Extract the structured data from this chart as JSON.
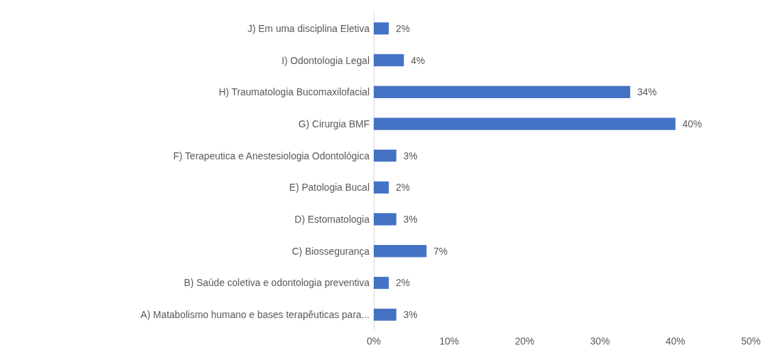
{
  "chart_data": {
    "type": "bar",
    "orientation": "horizontal",
    "categories": [
      "J) Em uma disciplina Eletiva",
      "I) Odontologia Legal",
      "H) Traumatologia Bucomaxilofacial",
      "G) Cirurgia BMF",
      "F) Terapeutica e Anestesiologia Odontológica",
      "E) Patologia Bucal",
      "D) Estomatologia",
      "C) Biossegurança",
      "B) Saúde coletiva e odontologia preventiva",
      "A) Matabolismo humano e bases terapêuticas para..."
    ],
    "values": [
      2,
      4,
      34,
      40,
      3,
      2,
      3,
      7,
      2,
      3
    ],
    "value_labels": [
      "2%",
      "4%",
      "34%",
      "40%",
      "3%",
      "2%",
      "3%",
      "7%",
      "2%",
      "3%"
    ],
    "color": "#4472c4",
    "xlim": [
      0,
      50
    ],
    "xticks": [
      {
        "value": 0,
        "label": "0%"
      },
      {
        "value": 10,
        "label": "10%"
      },
      {
        "value": 20,
        "label": "20%"
      },
      {
        "value": 30,
        "label": "30%"
      },
      {
        "value": 40,
        "label": "40%"
      },
      {
        "value": 50,
        "label": "50%"
      }
    ],
    "grid": false
  }
}
